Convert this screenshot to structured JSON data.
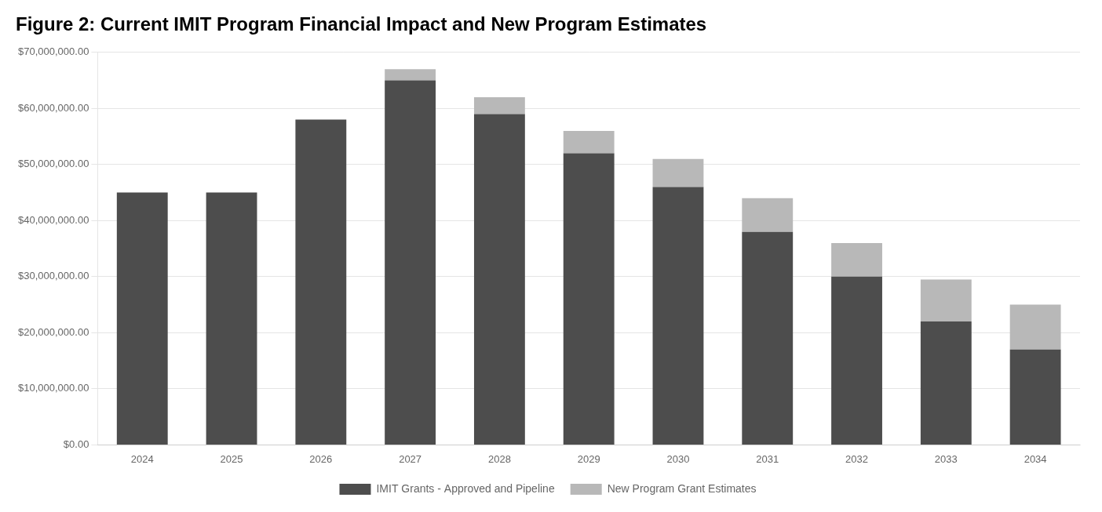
{
  "chart_data": {
    "type": "bar",
    "title": "Figure 2: Current IMIT Program Financial Impact and New Program Estimates",
    "categories": [
      "2024",
      "2025",
      "2026",
      "2027",
      "2028",
      "2029",
      "2030",
      "2031",
      "2032",
      "2033",
      "2034"
    ],
    "series": [
      {
        "name": "IMIT Grants - Approved and Pipeline",
        "color": "#4d4d4d",
        "values": [
          45000000,
          45000000,
          58000000,
          65000000,
          59000000,
          52000000,
          46000000,
          38000000,
          30000000,
          22000000,
          17000000
        ]
      },
      {
        "name": "New Program Grant Estimates",
        "color": "#b8b8b8",
        "values": [
          0,
          0,
          0,
          2000000,
          3000000,
          4000000,
          5000000,
          6000000,
          6000000,
          7500000,
          8000000
        ]
      }
    ],
    "stacked": true,
    "ylim": [
      0,
      70000000
    ],
    "yticks": [
      {
        "value": 0,
        "label": "$0.00"
      },
      {
        "value": 10000000,
        "label": "$10,000,000.00"
      },
      {
        "value": 20000000,
        "label": "$20,000,000.00"
      },
      {
        "value": 30000000,
        "label": "$30,000,000.00"
      },
      {
        "value": 40000000,
        "label": "$40,000,000.00"
      },
      {
        "value": 50000000,
        "label": "$50,000,000.00"
      },
      {
        "value": 60000000,
        "label": "$60,000,000.00"
      },
      {
        "value": 70000000,
        "label": "$70,000,000.00"
      }
    ],
    "grid": "y",
    "legend": "bottom"
  }
}
